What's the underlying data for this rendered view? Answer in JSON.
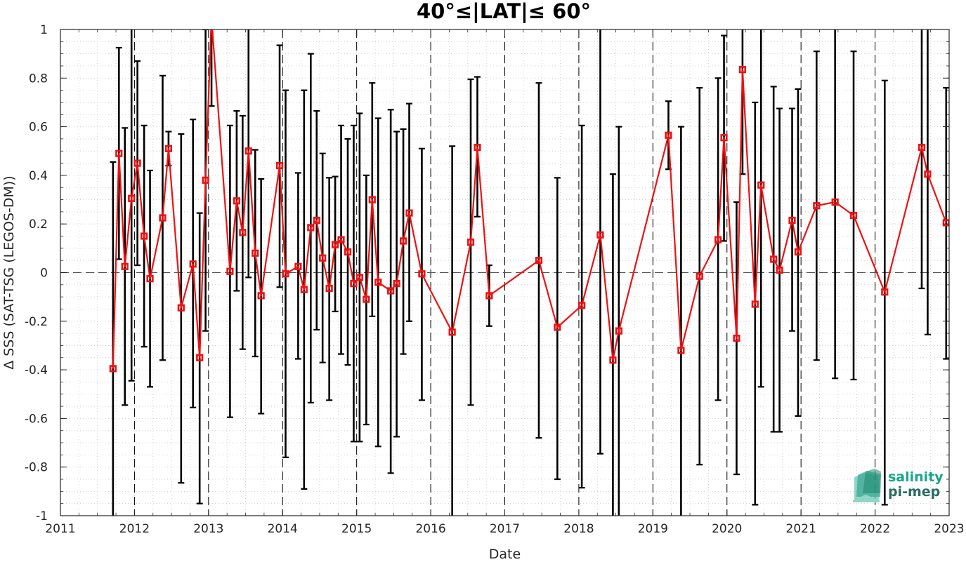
{
  "chart_data": {
    "type": "line",
    "title": "40°≤|LAT|≤ 60°",
    "xlabel": "Date",
    "ylabel": "Δ SSS (SAT-TSG (LEGOS-DM))",
    "xlim": [
      2011,
      2023
    ],
    "ylim": [
      -1,
      1
    ],
    "x_ticks": [
      2011,
      2012,
      2013,
      2014,
      2015,
      2016,
      2017,
      2018,
      2019,
      2020,
      2021,
      2022,
      2023
    ],
    "x_tick_labels": [
      "2011",
      "2012",
      "2013",
      "2014",
      "2015",
      "2016",
      "2017",
      "2018",
      "2019",
      "2020",
      "2021",
      "2022",
      "2023"
    ],
    "y_ticks": [
      -1,
      -0.8,
      -0.6,
      -0.4,
      -0.2,
      0,
      0.2,
      0.4,
      0.6,
      0.8,
      1
    ],
    "y_tick_labels": [
      "-1",
      "-0.8",
      "-0.6",
      "-0.4",
      "-0.2",
      "0",
      "0.2",
      "0.4",
      "0.6",
      "0.8",
      "1"
    ],
    "year_separators": [
      2012,
      2013,
      2014,
      2015,
      2016,
      2017,
      2018,
      2019,
      2020,
      2021,
      2022
    ],
    "zero_line": 0,
    "grid": "minor-dotted",
    "series": [
      {
        "color": "#ee1111",
        "errorbar_color": "#000000",
        "marker": "square",
        "points": [
          {
            "x": 2011.71,
            "y": -0.395,
            "lo": -1.05,
            "hi": 0.455
          },
          {
            "x": 2011.79,
            "y": 0.49,
            "lo": 0.055,
            "hi": 0.925
          },
          {
            "x": 2011.87,
            "y": 0.025,
            "lo": -0.545,
            "hi": 0.595
          },
          {
            "x": 2011.96,
            "y": 0.305,
            "lo": -0.445,
            "hi": 1.05
          },
          {
            "x": 2012.04,
            "y": 0.45,
            "lo": 0.03,
            "hi": 0.87
          },
          {
            "x": 2012.13,
            "y": 0.15,
            "lo": -0.305,
            "hi": 0.605
          },
          {
            "x": 2012.21,
            "y": -0.025,
            "lo": -0.47,
            "hi": 0.42
          },
          {
            "x": 2012.38,
            "y": 0.225,
            "lo": -0.36,
            "hi": 0.81
          },
          {
            "x": 2012.46,
            "y": 0.51,
            "lo": 0.44,
            "hi": 0.58
          },
          {
            "x": 2012.63,
            "y": -0.145,
            "lo": -0.865,
            "hi": 0.57
          },
          {
            "x": 2012.79,
            "y": 0.035,
            "lo": -0.555,
            "hi": 0.63
          },
          {
            "x": 2012.88,
            "y": -0.35,
            "lo": -0.95,
            "hi": 0.245
          },
          {
            "x": 2012.96,
            "y": 0.38,
            "lo": -0.24,
            "hi": 1.0
          },
          {
            "x": 2013.04,
            "y": 1.05,
            "lo": 0.685,
            "hi": 1.05
          },
          {
            "x": 2013.29,
            "y": 0.005,
            "lo": -0.595,
            "hi": 0.605
          },
          {
            "x": 2013.38,
            "y": 0.295,
            "lo": -0.075,
            "hi": 0.665
          },
          {
            "x": 2013.46,
            "y": 0.165,
            "lo": -0.315,
            "hi": 0.645
          },
          {
            "x": 2013.54,
            "y": 0.5,
            "lo": -0.02,
            "hi": 1.05
          },
          {
            "x": 2013.63,
            "y": 0.08,
            "lo": -0.345,
            "hi": 0.505
          },
          {
            "x": 2013.71,
            "y": -0.095,
            "lo": -0.58,
            "hi": 0.385
          },
          {
            "x": 2013.96,
            "y": 0.44,
            "lo": -0.06,
            "hi": 0.935
          },
          {
            "x": 2014.04,
            "y": -0.005,
            "lo": -0.76,
            "hi": 0.75
          },
          {
            "x": 2014.21,
            "y": 0.025,
            "lo": -0.355,
            "hi": 0.41
          },
          {
            "x": 2014.29,
            "y": -0.07,
            "lo": -0.89,
            "hi": 0.75
          },
          {
            "x": 2014.38,
            "y": 0.185,
            "lo": -0.535,
            "hi": 0.9
          },
          {
            "x": 2014.46,
            "y": 0.215,
            "lo": -0.235,
            "hi": 0.665
          },
          {
            "x": 2014.54,
            "y": 0.06,
            "lo": -0.37,
            "hi": 0.49
          },
          {
            "x": 2014.63,
            "y": -0.065,
            "lo": -0.525,
            "hi": 0.39
          },
          {
            "x": 2014.71,
            "y": 0.115,
            "lo": -0.16,
            "hi": 0.395
          },
          {
            "x": 2014.79,
            "y": 0.135,
            "lo": -0.335,
            "hi": 0.605
          },
          {
            "x": 2014.88,
            "y": 0.085,
            "lo": -0.38,
            "hi": 0.55
          },
          {
            "x": 2014.96,
            "y": -0.045,
            "lo": -0.695,
            "hi": 0.605
          },
          {
            "x": 2015.04,
            "y": -0.02,
            "lo": -0.695,
            "hi": 0.655
          },
          {
            "x": 2015.13,
            "y": -0.11,
            "lo": -0.625,
            "hi": 0.4
          },
          {
            "x": 2015.21,
            "y": 0.3,
            "lo": -0.18,
            "hi": 0.78
          },
          {
            "x": 2015.29,
            "y": -0.04,
            "lo": -0.715,
            "hi": 0.635
          },
          {
            "x": 2015.46,
            "y": -0.075,
            "lo": -0.825,
            "hi": 0.67
          },
          {
            "x": 2015.54,
            "y": -0.045,
            "lo": -0.675,
            "hi": 0.58
          },
          {
            "x": 2015.63,
            "y": 0.13,
            "lo": -0.335,
            "hi": 0.59
          },
          {
            "x": 2015.71,
            "y": 0.245,
            "lo": -0.2,
            "hi": 0.695
          },
          {
            "x": 2015.88,
            "y": -0.005,
            "lo": -0.525,
            "hi": 0.51
          },
          {
            "x": 2016.29,
            "y": -0.245,
            "lo": -1.05,
            "hi": 0.52
          },
          {
            "x": 2016.54,
            "y": 0.125,
            "lo": -0.545,
            "hi": 0.795
          },
          {
            "x": 2016.63,
            "y": 0.515,
            "lo": 0.23,
            "hi": 0.805
          },
          {
            "x": 2016.79,
            "y": -0.095,
            "lo": -0.22,
            "hi": 0.03
          },
          {
            "x": 2017.46,
            "y": 0.05,
            "lo": -0.68,
            "hi": 0.78
          },
          {
            "x": 2017.71,
            "y": -0.225,
            "lo": -0.85,
            "hi": 0.39
          },
          {
            "x": 2018.04,
            "y": -0.135,
            "lo": -0.885,
            "hi": 0.605
          },
          {
            "x": 2018.29,
            "y": 0.155,
            "lo": -0.745,
            "hi": 1.05
          },
          {
            "x": 2018.46,
            "y": -0.36,
            "lo": -1.05,
            "hi": 0.405
          },
          {
            "x": 2018.54,
            "y": -0.24,
            "lo": -1.05,
            "hi": 0.6
          },
          {
            "x": 2019.21,
            "y": 0.565,
            "lo": 0.425,
            "hi": 0.705
          },
          {
            "x": 2019.38,
            "y": -0.32,
            "lo": -1.05,
            "hi": 0.6
          },
          {
            "x": 2019.63,
            "y": -0.015,
            "lo": -0.79,
            "hi": 0.76
          },
          {
            "x": 2019.88,
            "y": 0.135,
            "lo": -0.525,
            "hi": 0.8
          },
          {
            "x": 2019.96,
            "y": 0.555,
            "lo": 0.13,
            "hi": 0.975
          },
          {
            "x": 2020.13,
            "y": -0.27,
            "lo": -0.83,
            "hi": 0.29
          },
          {
            "x": 2020.21,
            "y": 0.835,
            "lo": 0.405,
            "hi": 1.05
          },
          {
            "x": 2020.38,
            "y": -0.13,
            "lo": -0.955,
            "hi": 0.7
          },
          {
            "x": 2020.46,
            "y": 0.36,
            "lo": -0.47,
            "hi": 1.05
          },
          {
            "x": 2020.63,
            "y": 0.055,
            "lo": -0.655,
            "hi": 0.765
          },
          {
            "x": 2020.71,
            "y": 0.01,
            "lo": -0.655,
            "hi": 0.675
          },
          {
            "x": 2020.88,
            "y": 0.215,
            "lo": -0.24,
            "hi": 0.675
          },
          {
            "x": 2020.96,
            "y": 0.085,
            "lo": -0.59,
            "hi": 0.755
          },
          {
            "x": 2021.21,
            "y": 0.275,
            "lo": -0.36,
            "hi": 0.91
          },
          {
            "x": 2021.46,
            "y": 0.29,
            "lo": -0.435,
            "hi": 1.05
          },
          {
            "x": 2021.71,
            "y": 0.235,
            "lo": -0.44,
            "hi": 0.91
          },
          {
            "x": 2022.13,
            "y": -0.08,
            "lo": -0.955,
            "hi": 0.79
          },
          {
            "x": 2022.63,
            "y": 0.515,
            "lo": -0.065,
            "hi": 1.05
          },
          {
            "x": 2022.71,
            "y": 0.405,
            "lo": -0.255,
            "hi": 1.05
          },
          {
            "x": 2022.96,
            "y": 0.205,
            "lo": -0.355,
            "hi": 0.76
          }
        ]
      }
    ]
  },
  "logo": {
    "line1": "salinity",
    "line2": "pi-mep",
    "color1": "#1aa58a",
    "color2": "#2c6b63"
  }
}
